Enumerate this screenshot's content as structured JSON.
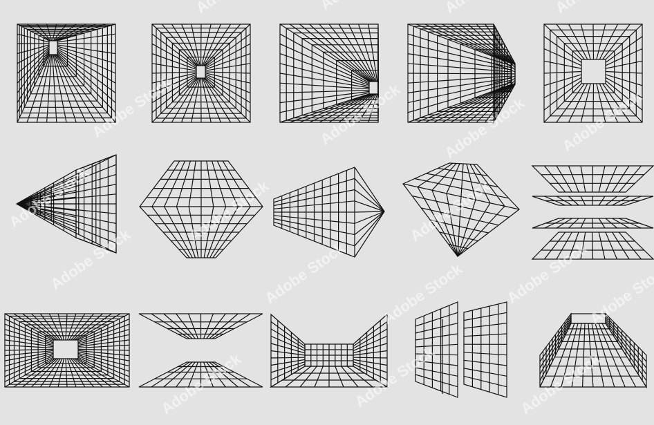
{
  "colors": {
    "background": "#e3e3e3",
    "line": "#111111",
    "watermark": "#ffffff"
  },
  "watermark": {
    "text": "Adobe Stock"
  },
  "shapes": [
    {
      "name": "grid-tunnel-square-offcenter-left",
      "kind": "tunnel"
    },
    {
      "name": "grid-tunnel-square-centered",
      "kind": "tunnel"
    },
    {
      "name": "grid-tunnel-right-vanishing",
      "kind": "tunnel"
    },
    {
      "name": "grid-tunnel-right-converging",
      "kind": "tunnel"
    },
    {
      "name": "grid-tunnel-square-large-window",
      "kind": "tunnel"
    },
    {
      "name": "grid-pyramid-left",
      "kind": "pyramid"
    },
    {
      "name": "grid-diamond-centered",
      "kind": "diamond"
    },
    {
      "name": "grid-diamond-right",
      "kind": "diamond"
    },
    {
      "name": "grid-diamond-tilted",
      "kind": "diamond"
    },
    {
      "name": "grid-stacked-planes",
      "kind": "planes"
    },
    {
      "name": "grid-tunnel-wide",
      "kind": "tunnel"
    },
    {
      "name": "grid-floor-ceiling-planes",
      "kind": "planes"
    },
    {
      "name": "grid-room-open-front",
      "kind": "room"
    },
    {
      "name": "grid-standing-panels",
      "kind": "panels"
    },
    {
      "name": "grid-corridor-open-top",
      "kind": "corridor"
    }
  ]
}
